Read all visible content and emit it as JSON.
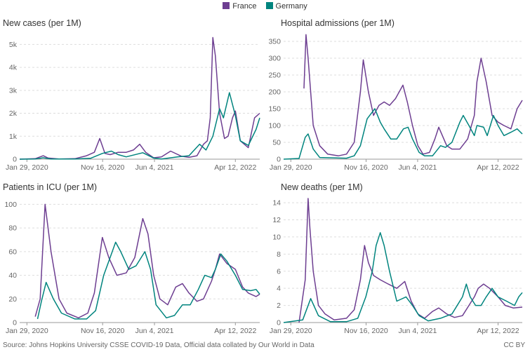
{
  "legend": {
    "france": "France",
    "germany": "Germany"
  },
  "colors": {
    "france": "#6d3e91",
    "germany": "#00847e",
    "grid": "#dddddd",
    "text": "#666666"
  },
  "source": "Source: Johns Hopkins University CSSE COVID-19 Data, Official data collated by Our World in Data",
  "license": "CC BY",
  "chart_data": [
    {
      "type": "line",
      "title": "New cases (per 1M)",
      "x_range": [
        "2020-01-01",
        "2022-07-15"
      ],
      "x_ticks": [
        "Jan 29, 2020",
        "Nov 16, 2020",
        "Jun 4, 2021",
        "Apr 12, 2022"
      ],
      "x_tick_dates": [
        "2020-01-29",
        "2020-11-16",
        "2021-06-04",
        "2022-04-12"
      ],
      "ylim": [
        0,
        5500
      ],
      "y_ticks": [
        0,
        1000,
        2000,
        3000,
        4000,
        5000
      ],
      "y_tick_labels": [
        "0",
        "1k",
        "2k",
        "3k",
        "4k",
        "5k"
      ],
      "series": [
        {
          "name": "France",
          "x": [
            "2020-01-01",
            "2020-03-01",
            "2020-04-01",
            "2020-04-20",
            "2020-06-01",
            "2020-08-01",
            "2020-09-15",
            "2020-10-15",
            "2020-11-05",
            "2020-11-25",
            "2020-12-15",
            "2021-01-15",
            "2021-02-15",
            "2021-03-15",
            "2021-04-08",
            "2021-05-01",
            "2021-06-01",
            "2021-07-01",
            "2021-08-05",
            "2021-09-15",
            "2021-10-15",
            "2021-11-15",
            "2021-12-10",
            "2021-12-25",
            "2022-01-05",
            "2022-01-10",
            "2022-01-15",
            "2022-01-25",
            "2022-02-10",
            "2022-03-01",
            "2022-03-15",
            "2022-04-01",
            "2022-04-12",
            "2022-05-01",
            "2022-06-01",
            "2022-06-25",
            "2022-07-15"
          ],
          "y": [
            0,
            20,
            150,
            50,
            10,
            20,
            150,
            300,
            900,
            250,
            200,
            300,
            300,
            400,
            650,
            300,
            60,
            100,
            350,
            130,
            80,
            150,
            650,
            800,
            1800,
            3500,
            5300,
            4500,
            2000,
            900,
            1000,
            1800,
            2100,
            800,
            500,
            1800,
            2000
          ]
        },
        {
          "name": "Germany",
          "x": [
            "2020-01-01",
            "2020-03-01",
            "2020-04-01",
            "2020-05-01",
            "2020-08-01",
            "2020-10-01",
            "2020-11-15",
            "2020-12-20",
            "2021-01-15",
            "2021-02-15",
            "2021-04-20",
            "2021-06-01",
            "2021-07-01",
            "2021-09-01",
            "2021-10-15",
            "2021-11-25",
            "2021-12-20",
            "2022-01-15",
            "2022-02-10",
            "2022-02-25",
            "2022-03-20",
            "2022-04-12",
            "2022-05-01",
            "2022-06-01",
            "2022-07-01",
            "2022-07-15"
          ],
          "y": [
            0,
            10,
            60,
            10,
            10,
            40,
            250,
            350,
            200,
            100,
            280,
            50,
            10,
            100,
            150,
            650,
            400,
            1000,
            2200,
            1800,
            2900,
            1900,
            800,
            600,
            1300,
            1800
          ]
        }
      ]
    },
    {
      "type": "line",
      "title": "Hospital admissions (per 1M)",
      "x_range": [
        "2020-01-01",
        "2022-07-15"
      ],
      "x_ticks": [
        "Jan 29, 2020",
        "Nov 16, 2020",
        "Jun 4, 2021",
        "Apr 12, 2022"
      ],
      "x_tick_dates": [
        "2020-01-29",
        "2020-11-16",
        "2021-06-04",
        "2022-04-12"
      ],
      "ylim": [
        0,
        375
      ],
      "y_ticks": [
        0,
        50,
        100,
        150,
        200,
        250,
        300,
        350
      ],
      "y_tick_labels": [
        "0",
        "50",
        "100",
        "150",
        "200",
        "250",
        "300",
        "350"
      ],
      "series": [
        {
          "name": "France",
          "x": [
            "2020-03-20",
            "2020-03-28",
            "2020-04-05",
            "2020-04-25",
            "2020-05-20",
            "2020-06-20",
            "2020-08-01",
            "2020-09-01",
            "2020-10-01",
            "2020-10-25",
            "2020-11-05",
            "2020-11-25",
            "2020-12-15",
            "2021-01-05",
            "2021-01-25",
            "2021-02-15",
            "2021-03-10",
            "2021-04-08",
            "2021-04-25",
            "2021-05-15",
            "2021-06-05",
            "2021-06-25",
            "2021-07-20",
            "2021-08-10",
            "2021-08-25",
            "2021-09-25",
            "2021-10-15",
            "2021-11-15",
            "2021-12-15",
            "2022-01-10",
            "2022-01-20",
            "2022-02-05",
            "2022-02-25",
            "2022-03-20",
            "2022-04-12",
            "2022-05-05",
            "2022-06-01",
            "2022-06-25",
            "2022-07-15"
          ],
          "y": [
            210,
            370,
            300,
            100,
            40,
            15,
            10,
            15,
            50,
            200,
            295,
            200,
            130,
            160,
            170,
            160,
            180,
            220,
            170,
            100,
            40,
            15,
            20,
            60,
            95,
            40,
            30,
            30,
            60,
            130,
            230,
            300,
            230,
            130,
            110,
            100,
            90,
            150,
            175
          ]
        },
        {
          "name": "Germany",
          "x": [
            "2020-01-01",
            "2020-03-01",
            "2020-03-25",
            "2020-04-05",
            "2020-04-25",
            "2020-05-20",
            "2020-09-01",
            "2020-10-01",
            "2020-10-25",
            "2020-11-20",
            "2020-12-20",
            "2021-01-10",
            "2021-01-25",
            "2021-02-20",
            "2021-03-15",
            "2021-04-10",
            "2021-04-28",
            "2021-05-15",
            "2021-06-10",
            "2021-07-01",
            "2021-08-01",
            "2021-09-01",
            "2021-09-20",
            "2021-10-15",
            "2021-11-15",
            "2021-11-28",
            "2021-12-20",
            "2022-01-10",
            "2022-01-20",
            "2022-02-15",
            "2022-03-01",
            "2022-03-25",
            "2022-04-12",
            "2022-05-05",
            "2022-06-01",
            "2022-06-25",
            "2022-07-15"
          ],
          "y": [
            0,
            2,
            65,
            75,
            30,
            5,
            3,
            10,
            40,
            120,
            150,
            110,
            90,
            60,
            60,
            90,
            95,
            60,
            20,
            10,
            10,
            40,
            35,
            50,
            110,
            130,
            100,
            70,
            100,
            95,
            70,
            130,
            100,
            70,
            80,
            90,
            75
          ]
        }
      ]
    },
    {
      "type": "line",
      "title": "Patients in ICU (per 1M)",
      "x_range": [
        "2020-01-01",
        "2022-07-15"
      ],
      "x_ticks": [
        "Jan 29, 2020",
        "Nov 16, 2020",
        "Jun 4, 2021",
        "Apr 12, 2022"
      ],
      "x_tick_dates": [
        "2020-01-29",
        "2020-11-16",
        "2021-06-04",
        "2022-04-12"
      ],
      "ylim": [
        0,
        105
      ],
      "y_ticks": [
        0,
        20,
        40,
        60,
        80,
        100
      ],
      "y_tick_labels": [
        "0",
        "20",
        "40",
        "60",
        "80",
        "100"
      ],
      "series": [
        {
          "name": "France",
          "x": [
            "2020-03-01",
            "2020-03-20",
            "2020-04-08",
            "2020-05-01",
            "2020-06-01",
            "2020-07-01",
            "2020-08-15",
            "2020-09-20",
            "2020-10-15",
            "2020-11-15",
            "2020-12-10",
            "2021-01-10",
            "2021-02-15",
            "2021-03-20",
            "2021-04-20",
            "2021-05-10",
            "2021-06-01",
            "2021-06-25",
            "2021-07-25",
            "2021-08-25",
            "2021-09-20",
            "2021-10-15",
            "2021-11-15",
            "2021-12-10",
            "2022-01-10",
            "2022-01-25",
            "2022-02-10",
            "2022-03-10",
            "2022-04-12",
            "2022-05-10",
            "2022-06-01",
            "2022-07-01",
            "2022-07-15"
          ],
          "y": [
            5,
            20,
            100,
            60,
            20,
            8,
            4,
            8,
            25,
            72,
            55,
            40,
            42,
            55,
            88,
            75,
            40,
            20,
            15,
            30,
            33,
            25,
            18,
            20,
            35,
            45,
            58,
            50,
            45,
            30,
            25,
            22,
            24
          ]
        },
        {
          "name": "Germany",
          "x": [
            "2020-03-10",
            "2020-03-25",
            "2020-04-12",
            "2020-05-10",
            "2020-06-10",
            "2020-08-01",
            "2020-09-15",
            "2020-10-20",
            "2020-11-20",
            "2020-12-15",
            "2021-01-05",
            "2021-01-25",
            "2021-02-25",
            "2021-03-25",
            "2021-04-28",
            "2021-05-20",
            "2021-06-10",
            "2021-07-20",
            "2021-08-20",
            "2021-09-20",
            "2021-10-20",
            "2021-11-20",
            "2021-12-15",
            "2022-01-10",
            "2022-01-25",
            "2022-02-15",
            "2022-03-10",
            "2022-04-12",
            "2022-05-10",
            "2022-06-10",
            "2022-07-01",
            "2022-07-15"
          ],
          "y": [
            3,
            18,
            34,
            20,
            8,
            3,
            3,
            10,
            40,
            55,
            68,
            60,
            45,
            48,
            60,
            45,
            15,
            4,
            6,
            15,
            15,
            28,
            40,
            38,
            45,
            58,
            52,
            40,
            28,
            27,
            28,
            24
          ]
        }
      ]
    },
    {
      "type": "line",
      "title": "New deaths (per 1M)",
      "x_range": [
        "2020-01-01",
        "2022-07-15"
      ],
      "x_ticks": [
        "Jan 29, 2020",
        "Nov 16, 2020",
        "Jun 4, 2021",
        "Apr 12, 2022"
      ],
      "x_tick_dates": [
        "2020-01-29",
        "2020-11-16",
        "2021-06-04",
        "2022-04-12"
      ],
      "ylim": [
        0,
        14.5
      ],
      "y_ticks": [
        0,
        2,
        4,
        6,
        8,
        10,
        12,
        14
      ],
      "y_tick_labels": [
        "0",
        "2",
        "4",
        "6",
        "8",
        "10",
        "12",
        "14"
      ],
      "series": [
        {
          "name": "France",
          "x": [
            "2020-03-01",
            "2020-03-25",
            "2020-04-05",
            "2020-04-12",
            "2020-04-25",
            "2020-05-15",
            "2020-06-10",
            "2020-07-15",
            "2020-09-01",
            "2020-10-01",
            "2020-10-25",
            "2020-11-10",
            "2020-11-25",
            "2020-12-15",
            "2021-01-10",
            "2021-02-10",
            "2021-03-15",
            "2021-04-15",
            "2021-05-10",
            "2021-06-05",
            "2021-07-01",
            "2021-08-01",
            "2021-08-25",
            "2021-09-25",
            "2021-10-25",
            "2021-11-25",
            "2021-12-20",
            "2022-01-10",
            "2022-01-25",
            "2022-02-15",
            "2022-03-10",
            "2022-04-12",
            "2022-05-10",
            "2022-06-10",
            "2022-07-15"
          ],
          "y": [
            0,
            5,
            14.5,
            11,
            6,
            2,
            1,
            0.3,
            0.5,
            1.5,
            5,
            9,
            7,
            5.5,
            5,
            4.5,
            4,
            4.8,
            2.5,
            1,
            0.5,
            1.3,
            1.7,
            1,
            0.6,
            0.8,
            2,
            3,
            4,
            4.5,
            4,
            3,
            2,
            1.7,
            1.8
          ]
        },
        {
          "name": "Germany",
          "x": [
            "2020-01-01",
            "2020-03-15",
            "2020-04-15",
            "2020-05-15",
            "2020-07-01",
            "2020-09-01",
            "2020-10-15",
            "2020-11-15",
            "2020-12-10",
            "2020-12-25",
            "2021-01-10",
            "2021-01-25",
            "2021-02-15",
            "2021-03-15",
            "2021-04-20",
            "2021-05-15",
            "2021-06-10",
            "2021-07-15",
            "2021-09-01",
            "2021-10-15",
            "2021-11-25",
            "2021-12-10",
            "2021-12-25",
            "2022-01-15",
            "2022-02-05",
            "2022-02-25",
            "2022-03-20",
            "2022-04-12",
            "2022-05-15",
            "2022-06-15",
            "2022-07-01",
            "2022-07-15"
          ],
          "y": [
            0,
            0.3,
            2.8,
            0.8,
            0.1,
            0.1,
            0.5,
            3,
            6,
            9,
            10.5,
            9,
            6,
            2.5,
            3,
            2,
            0.8,
            0.2,
            0.5,
            1,
            3,
            4.5,
            3,
            2,
            2,
            3,
            4,
            3,
            2.5,
            2,
            3,
            3.5
          ]
        }
      ]
    }
  ]
}
